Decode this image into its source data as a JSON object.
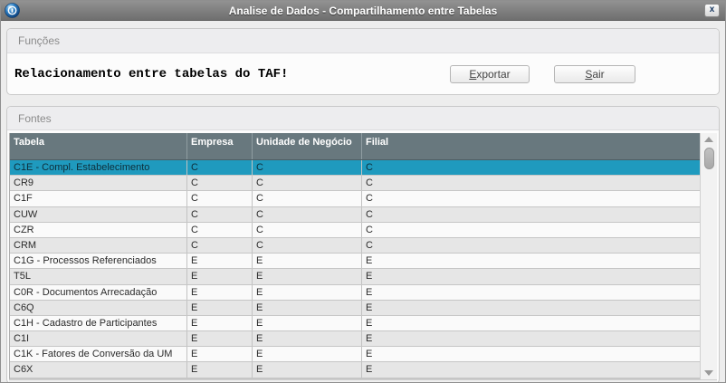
{
  "window": {
    "title": "Analise de Dados - Compartilhamento entre Tabelas",
    "close_label": "x",
    "app_icon": "totvs-globe-icon"
  },
  "funcoes": {
    "title": "Funções",
    "message": "Relacionamento entre tabelas do TAF!",
    "buttons": [
      {
        "name": "exportar",
        "first": "E",
        "rest": "xportar"
      },
      {
        "name": "sair",
        "first": "S",
        "rest": "air"
      }
    ]
  },
  "fontes": {
    "title": "Fontes",
    "columns": [
      "Tabela",
      "Empresa",
      "Unidade de Negócio",
      "Filial"
    ],
    "selected_index": 0,
    "rows": [
      [
        "C1E - Compl. Estabelecimento",
        "C",
        "C",
        "C"
      ],
      [
        "CR9",
        "C",
        "C",
        "C"
      ],
      [
        "C1F",
        "C",
        "C",
        "C"
      ],
      [
        "CUW",
        "C",
        "C",
        "C"
      ],
      [
        "CZR",
        "C",
        "C",
        "C"
      ],
      [
        "CRM",
        "C",
        "C",
        "C"
      ],
      [
        "C1G - Processos Referenciados",
        "E",
        "E",
        "E"
      ],
      [
        "T5L",
        "E",
        "E",
        "E"
      ],
      [
        "C0R - Documentos Arrecadação",
        "E",
        "E",
        "E"
      ],
      [
        "C6Q",
        "E",
        "E",
        "E"
      ],
      [
        "C1H - Cadastro de Participantes",
        "E",
        "E",
        "E"
      ],
      [
        "C1I",
        "E",
        "E",
        "E"
      ],
      [
        "C1K - Fatores de Conversão da UM",
        "E",
        "E",
        "E"
      ],
      [
        "C6X",
        "E",
        "E",
        "E"
      ]
    ]
  },
  "colors": {
    "header_bg": "#68787E",
    "selected_bg": "#1F9ABE",
    "alt_row": "#e6e6e6",
    "titlebar": "#7E7E7E",
    "icon_blue": "#1565ad"
  }
}
